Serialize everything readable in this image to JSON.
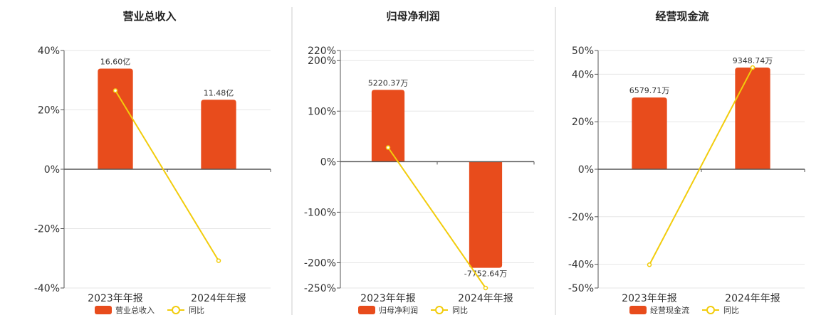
{
  "chart_data": [
    {
      "type": "bar",
      "title": "营业总收入",
      "categories": [
        "2023年年报",
        "2024年年报"
      ],
      "series": [
        {
          "name": "营业总收入",
          "type": "bar",
          "values": [
            33.9,
            23.4
          ],
          "value_labels": [
            "16.60亿",
            "11.48亿"
          ]
        },
        {
          "name": "同比",
          "type": "line",
          "values": [
            26.5,
            -30.8
          ]
        }
      ],
      "yticks": [
        "40%",
        "20%",
        "0%",
        "-20%",
        "-40%"
      ],
      "tick_values": [
        40,
        20,
        0,
        -20,
        -40
      ],
      "ylim": [
        -40,
        40
      ],
      "grid": true,
      "legend_position": "bottom"
    },
    {
      "type": "bar",
      "title": "归母净利润",
      "categories": [
        "2023年年报",
        "2024年年报"
      ],
      "series": [
        {
          "name": "归母净利润",
          "type": "bar",
          "values": [
            142,
            -210
          ],
          "value_labels": [
            "5220.37万",
            "-7752.64万"
          ]
        },
        {
          "name": "同比",
          "type": "line",
          "values": [
            28,
            -250
          ]
        }
      ],
      "yticks": [
        "220%",
        "200%",
        "100%",
        "0%",
        "-100%",
        "-200%",
        "-250%"
      ],
      "tick_values": [
        220,
        200,
        100,
        0,
        -100,
        -200,
        -250
      ],
      "ylim": [
        -250,
        220
      ],
      "grid": true,
      "legend_position": "bottom"
    },
    {
      "type": "bar",
      "title": "经营现金流",
      "categories": [
        "2023年年报",
        "2024年年报"
      ],
      "series": [
        {
          "name": "经营现金流",
          "type": "bar",
          "values": [
            30.2,
            42.8
          ],
          "value_labels": [
            "6579.71万",
            "9348.74万"
          ]
        },
        {
          "name": "同比",
          "type": "line",
          "values": [
            -40.2,
            42.8
          ]
        }
      ],
      "yticks": [
        "50%",
        "40%",
        "20%",
        "0%",
        "-20%",
        "-40%",
        "-50%"
      ],
      "tick_values": [
        50,
        40,
        20,
        0,
        -20,
        -40,
        -50
      ],
      "ylim": [
        -50,
        50
      ],
      "grid": true,
      "legend_position": "bottom"
    }
  ],
  "colors": {
    "bar": "#e84c1c",
    "line": "#f2cc0c",
    "grid": "#e6e6e6",
    "axis": "#555555",
    "divider": "#cccccc"
  }
}
